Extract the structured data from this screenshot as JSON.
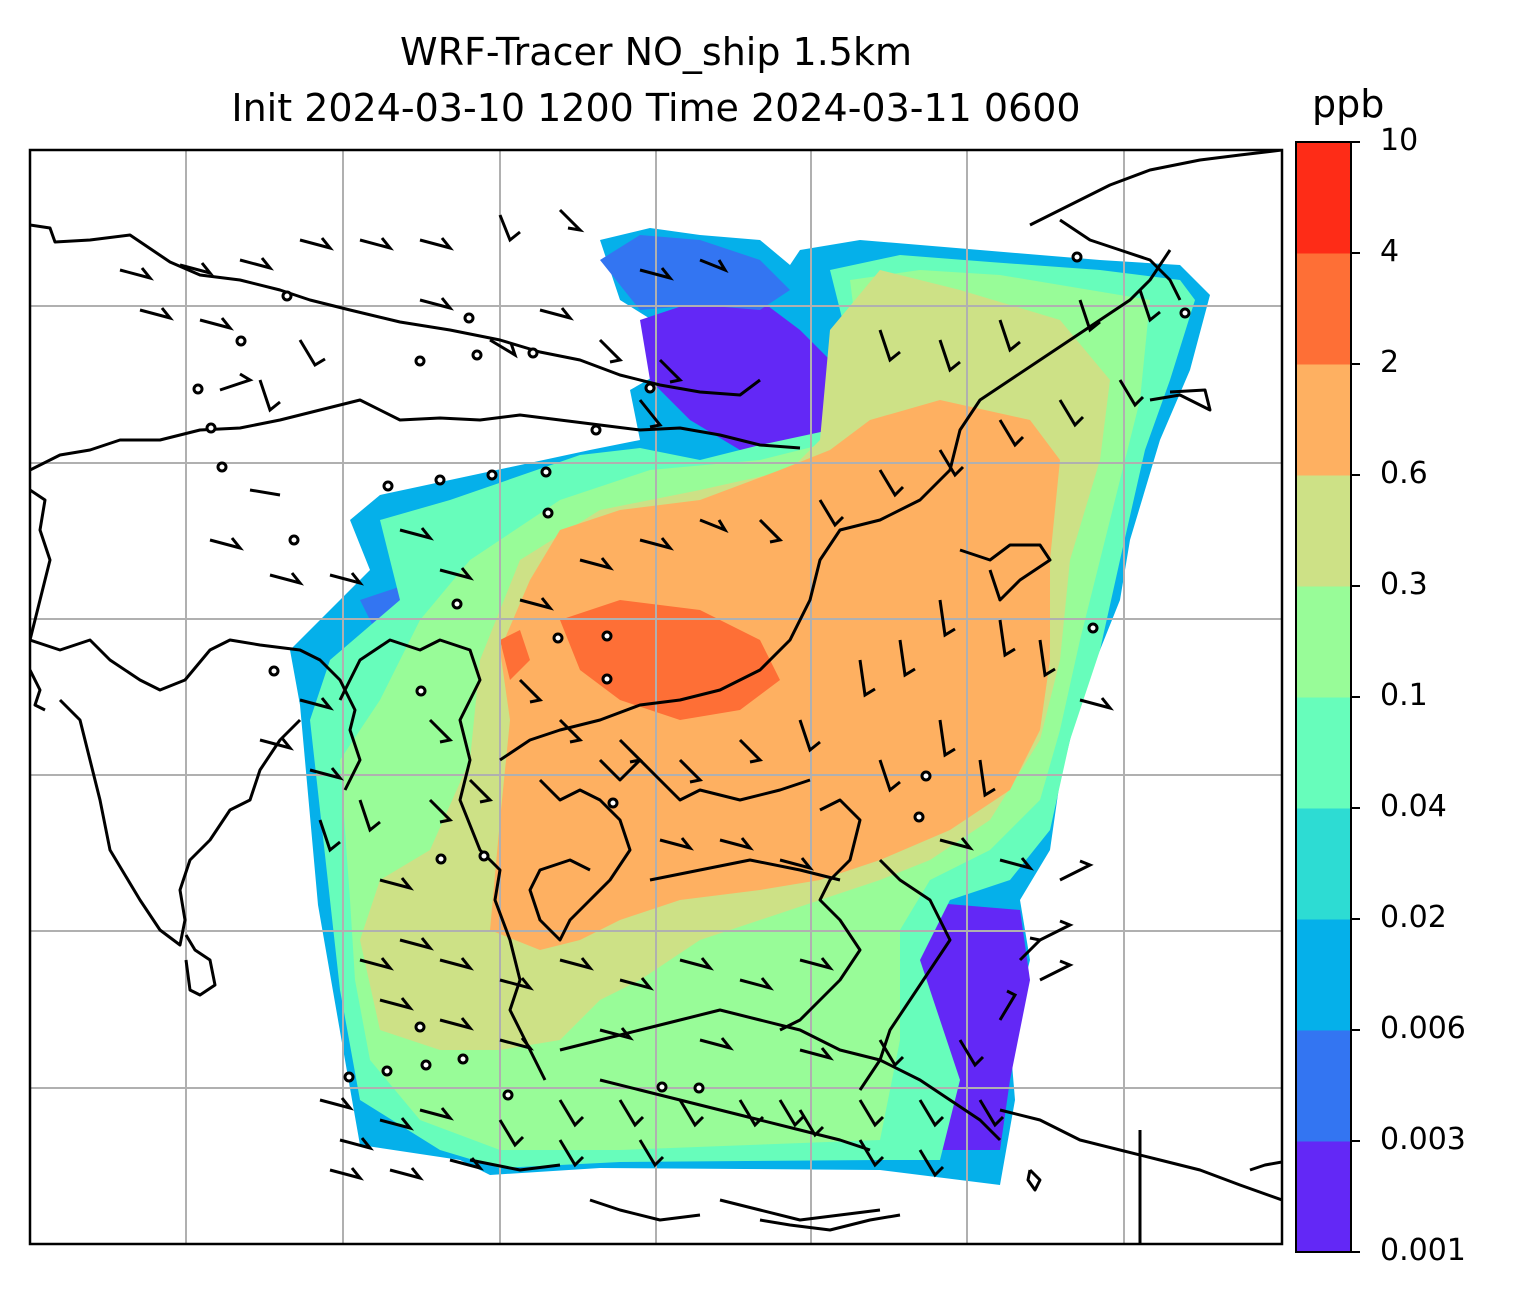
{
  "title": {
    "line1": "WRF-Tracer NO_ship 1.5km",
    "line2": "Init 2024-03-10 1200 Time 2024-03-11 0600"
  },
  "colorbar": {
    "unit": "ppb",
    "levels": [
      "0.001",
      "0.003",
      "0.006",
      "0.02",
      "0.04",
      "0.1",
      "0.3",
      "0.6",
      "2",
      "4",
      "10"
    ],
    "colors": [
      "#6328f6",
      "#3375f2",
      "#05b0ea",
      "#2ddcd3",
      "#67fdbb",
      "#98fc98",
      "#cde186",
      "#feb061",
      "#fe6f36",
      "#fe2c17"
    ]
  },
  "map": {
    "gridlines": true,
    "graticule_color": "#b0b0b0",
    "coastline_color": "#000000"
  }
}
